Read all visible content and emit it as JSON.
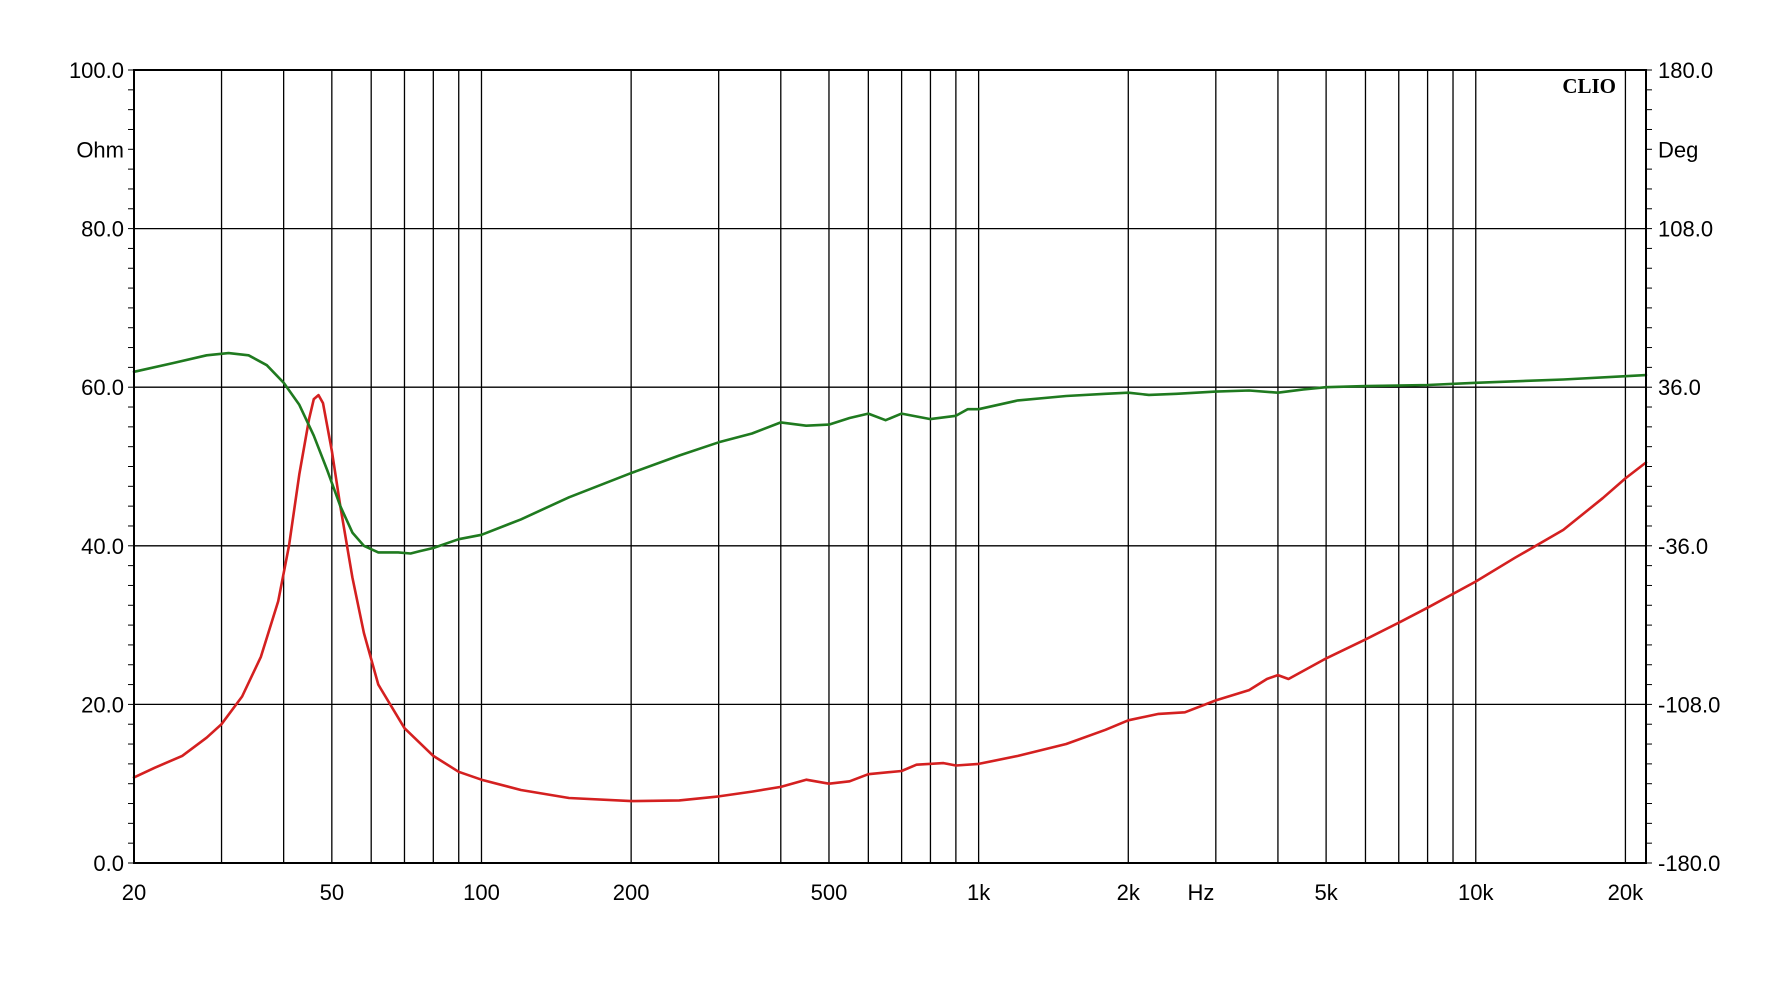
{
  "chart_data": {
    "type": "line",
    "brand": "CLIO",
    "x_axis": {
      "unit_label": "Hz",
      "scale": "log",
      "range": [
        20,
        22000
      ],
      "ticks": [
        {
          "value": 20,
          "label": "20"
        },
        {
          "value": 50,
          "label": "50"
        },
        {
          "value": 100,
          "label": "100"
        },
        {
          "value": 200,
          "label": "200"
        },
        {
          "value": 500,
          "label": "500"
        },
        {
          "value": 1000,
          "label": "1k"
        },
        {
          "value": 2000,
          "label": "2k"
        },
        {
          "value": 5000,
          "label": "5k"
        },
        {
          "value": 10000,
          "label": "10k"
        },
        {
          "value": 20000,
          "label": "20k"
        }
      ],
      "minor_gridlines": [
        30,
        40,
        50,
        60,
        70,
        80,
        90,
        100,
        200,
        300,
        400,
        500,
        600,
        700,
        800,
        900,
        1000,
        2000,
        3000,
        4000,
        5000,
        6000,
        7000,
        8000,
        9000,
        10000,
        20000
      ]
    },
    "y_left": {
      "unit_label": "Ohm",
      "range": [
        0,
        100
      ],
      "ticks": [
        {
          "value": 0,
          "label": "0.0"
        },
        {
          "value": 20,
          "label": "20.0"
        },
        {
          "value": 40,
          "label": "40.0"
        },
        {
          "value": 60,
          "label": "60.0"
        },
        {
          "value": 80,
          "label": "80.0"
        },
        {
          "value": 100,
          "label": "100.0"
        }
      ]
    },
    "y_right": {
      "unit_label": "Deg",
      "range": [
        -180,
        180
      ],
      "ticks": [
        {
          "value": -180,
          "label": "-180.0"
        },
        {
          "value": -108,
          "label": "-108.0"
        },
        {
          "value": -36,
          "label": "-36.0"
        },
        {
          "value": 36,
          "label": "36.0"
        },
        {
          "value": 108,
          "label": "108.0"
        },
        {
          "value": 180,
          "label": "180.0"
        }
      ]
    },
    "grid": true,
    "series": [
      {
        "axis": "left",
        "color": "#d42020",
        "points": [
          [
            20,
            10.8
          ],
          [
            22,
            12.0
          ],
          [
            25,
            13.5
          ],
          [
            28,
            15.8
          ],
          [
            30,
            17.5
          ],
          [
            33,
            21.0
          ],
          [
            36,
            26.0
          ],
          [
            39,
            33.0
          ],
          [
            41,
            40.0
          ],
          [
            43,
            49.0
          ],
          [
            45,
            56.0
          ],
          [
            46,
            58.5
          ],
          [
            47,
            59.0
          ],
          [
            48,
            58.0
          ],
          [
            50,
            52.0
          ],
          [
            52,
            45.0
          ],
          [
            55,
            36.0
          ],
          [
            58,
            29.0
          ],
          [
            62,
            22.5
          ],
          [
            70,
            17.0
          ],
          [
            80,
            13.5
          ],
          [
            90,
            11.5
          ],
          [
            100,
            10.5
          ],
          [
            120,
            9.2
          ],
          [
            150,
            8.2
          ],
          [
            200,
            7.8
          ],
          [
            250,
            7.9
          ],
          [
            300,
            8.4
          ],
          [
            350,
            9.0
          ],
          [
            400,
            9.6
          ],
          [
            450,
            10.5
          ],
          [
            500,
            10.0
          ],
          [
            550,
            10.3
          ],
          [
            600,
            11.2
          ],
          [
            700,
            11.6
          ],
          [
            750,
            12.4
          ],
          [
            850,
            12.6
          ],
          [
            900,
            12.3
          ],
          [
            1000,
            12.5
          ],
          [
            1200,
            13.5
          ],
          [
            1500,
            15.0
          ],
          [
            1800,
            16.8
          ],
          [
            2000,
            18.0
          ],
          [
            2300,
            18.8
          ],
          [
            2600,
            19.0
          ],
          [
            3000,
            20.5
          ],
          [
            3500,
            21.8
          ],
          [
            3800,
            23.2
          ],
          [
            4000,
            23.7
          ],
          [
            4200,
            23.2
          ],
          [
            5000,
            25.8
          ],
          [
            6000,
            28.2
          ],
          [
            7000,
            30.3
          ],
          [
            8000,
            32.2
          ],
          [
            10000,
            35.5
          ],
          [
            12000,
            38.5
          ],
          [
            15000,
            42.0
          ],
          [
            18000,
            46.0
          ],
          [
            20000,
            48.5
          ],
          [
            22000,
            50.5
          ]
        ]
      },
      {
        "axis": "right",
        "color": "#1f7a1f",
        "points": [
          [
            20,
            43.0
          ],
          [
            24,
            47.0
          ],
          [
            28,
            50.5
          ],
          [
            31,
            51.5
          ],
          [
            34,
            50.5
          ],
          [
            37,
            46.0
          ],
          [
            40,
            38.0
          ],
          [
            43,
            28.0
          ],
          [
            46,
            14.0
          ],
          [
            49,
            -2.0
          ],
          [
            52,
            -18.0
          ],
          [
            55,
            -30.0
          ],
          [
            58,
            -36.0
          ],
          [
            62,
            -39.0
          ],
          [
            68,
            -39.0
          ],
          [
            72,
            -39.5
          ],
          [
            75,
            -38.5
          ],
          [
            80,
            -37.0
          ],
          [
            90,
            -33.0
          ],
          [
            100,
            -31.0
          ],
          [
            120,
            -24.0
          ],
          [
            150,
            -14.0
          ],
          [
            200,
            -3.0
          ],
          [
            250,
            5.0
          ],
          [
            300,
            11.0
          ],
          [
            350,
            15.0
          ],
          [
            400,
            20.0
          ],
          [
            450,
            18.5
          ],
          [
            500,
            19.0
          ],
          [
            550,
            22.0
          ],
          [
            600,
            24.0
          ],
          [
            650,
            21.0
          ],
          [
            700,
            24.0
          ],
          [
            800,
            21.5
          ],
          [
            900,
            23.0
          ],
          [
            950,
            26.0
          ],
          [
            1000,
            26.0
          ],
          [
            1200,
            30.0
          ],
          [
            1500,
            32.0
          ],
          [
            1800,
            33.0
          ],
          [
            2000,
            33.5
          ],
          [
            2200,
            32.5
          ],
          [
            2500,
            33.0
          ],
          [
            3000,
            34.0
          ],
          [
            3500,
            34.5
          ],
          [
            4000,
            33.5
          ],
          [
            4500,
            35.0
          ],
          [
            5000,
            36.0
          ],
          [
            6000,
            36.5
          ],
          [
            8000,
            37.0
          ],
          [
            10000,
            38.0
          ],
          [
            15000,
            39.5
          ],
          [
            20000,
            41.0
          ],
          [
            22000,
            41.5
          ]
        ]
      }
    ]
  }
}
